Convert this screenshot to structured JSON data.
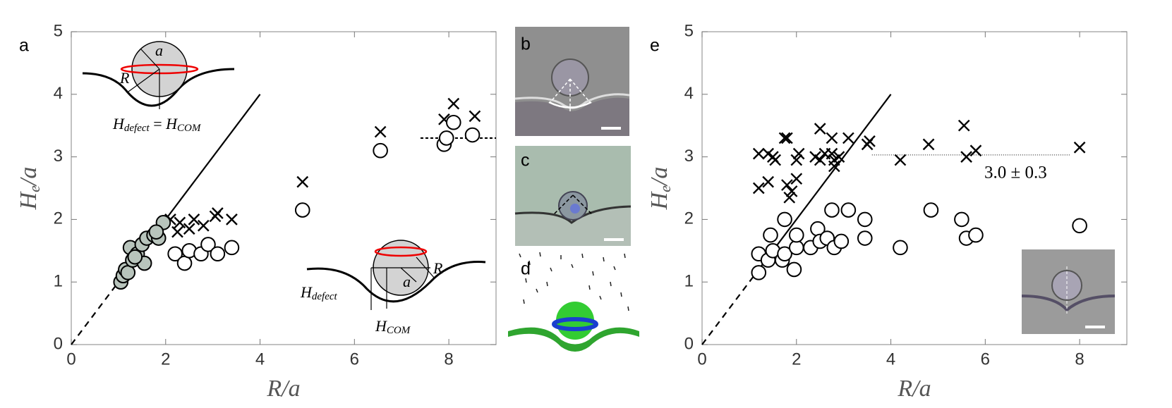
{
  "panel_labels": {
    "b": "b",
    "c": "c",
    "d": "d"
  },
  "chart_data": [
    {
      "type": "scatter",
      "panel_label": "a",
      "xlabel": "R/a",
      "ylabel": {
        "main": "H",
        "sub": "e",
        "rest": "/a"
      },
      "xlim": [
        0,
        9
      ],
      "ylim": [
        0,
        5
      ],
      "xticks": [
        0,
        2,
        4,
        6,
        8
      ],
      "yticks": [
        0,
        1,
        2,
        3,
        4,
        5
      ],
      "series": [
        {
          "marker": "x",
          "color": "#000000",
          "fill": "none",
          "x": [
            2.1,
            2.3,
            2.25,
            2.6,
            2.8,
            2.5,
            3.1,
            3.05,
            3.4,
            4.9,
            6.55,
            7.9,
            8.1,
            7.95,
            8.55
          ],
          "values": [
            2.0,
            1.95,
            1.8,
            2.0,
            1.9,
            1.85,
            2.1,
            2.05,
            2.0,
            2.6,
            3.4,
            3.6,
            3.85,
            3.3,
            3.65
          ]
        },
        {
          "marker": "o",
          "color": "#000000",
          "fill": "#ffffff",
          "x": [
            2.2,
            2.4,
            2.5,
            2.75,
            2.9,
            3.1,
            3.4,
            4.9,
            6.55,
            7.9,
            7.95,
            8.1,
            8.5
          ],
          "values": [
            1.45,
            1.3,
            1.5,
            1.45,
            1.6,
            1.45,
            1.55,
            2.15,
            3.1,
            3.2,
            3.3,
            3.55,
            3.35
          ]
        },
        {
          "marker": "o",
          "color": "#000000",
          "fill": "#b8c4bc",
          "x": [
            1.05,
            1.1,
            1.15,
            1.2,
            1.3,
            1.25,
            1.4,
            1.5,
            1.55,
            1.6,
            1.75,
            1.85,
            1.95,
            1.8,
            1.35
          ],
          "values": [
            1.0,
            1.1,
            1.2,
            1.15,
            1.35,
            1.55,
            1.45,
            1.6,
            1.3,
            1.7,
            1.75,
            1.7,
            1.95,
            1.8,
            1.4
          ]
        }
      ],
      "reference_lines": [
        {
          "x": [
            0,
            1
          ],
          "values": [
            0,
            1
          ],
          "dash": "9,7"
        },
        {
          "x": [
            1,
            4
          ],
          "values": [
            1,
            4
          ],
          "dash": "none"
        },
        {
          "x": [
            7.4,
            9
          ],
          "values": [
            3.3,
            3.3
          ],
          "dash": "4,3"
        }
      ],
      "inset_top": {
        "a": "a",
        "R": "R",
        "h1": "H",
        "h1_sub": "defect",
        "eq": " = ",
        "h2": "H",
        "h2_sub": "COM"
      },
      "inset_bottom": {
        "a": "a",
        "R": "R",
        "h1": "H",
        "h1_sub": "defect",
        "h2": "H",
        "h2_sub": "COM"
      }
    },
    {
      "type": "scatter",
      "panel_label": "e",
      "xlabel": "R/a",
      "ylabel": {
        "main": "H",
        "sub": "e",
        "rest": "/a"
      },
      "xlim": [
        0,
        9
      ],
      "ylim": [
        0,
        5
      ],
      "xticks": [
        0,
        2,
        4,
        6,
        8
      ],
      "yticks": [
        0,
        1,
        2,
        3,
        4,
        5
      ],
      "series": [
        {
          "marker": "x",
          "color": "#000000",
          "fill": "none",
          "x": [
            1.2,
            1.2,
            1.4,
            1.4,
            1.5,
            1.55,
            1.75,
            1.8,
            1.8,
            1.85,
            1.9,
            2.0,
            2.0,
            2.05,
            2.4,
            2.5,
            2.5,
            2.6,
            2.75,
            2.8,
            2.75,
            2.8,
            2.9,
            3.1,
            3.5,
            3.55,
            4.2,
            4.8,
            5.55,
            5.6,
            5.8,
            8.0
          ],
          "values": [
            3.05,
            2.5,
            3.05,
            2.6,
            3.0,
            2.95,
            3.3,
            3.3,
            2.55,
            2.35,
            2.45,
            2.65,
            2.95,
            3.05,
            3.0,
            3.45,
            2.95,
            3.05,
            3.3,
            2.95,
            3.05,
            2.85,
            3.0,
            3.3,
            3.2,
            3.25,
            2.95,
            3.2,
            3.5,
            3.0,
            3.1,
            3.15
          ]
        },
        {
          "marker": "o",
          "color": "#000000",
          "fill": "#ffffff",
          "x": [
            1.2,
            1.2,
            1.4,
            1.45,
            1.5,
            1.7,
            1.75,
            1.75,
            1.95,
            2.0,
            2.0,
            2.3,
            2.45,
            2.5,
            2.65,
            2.75,
            2.8,
            2.95,
            3.1,
            3.45,
            3.45,
            4.2,
            4.85,
            5.5,
            5.6,
            5.8,
            8.0
          ],
          "values": [
            1.15,
            1.45,
            1.35,
            1.75,
            1.5,
            1.35,
            1.45,
            2.0,
            1.2,
            1.55,
            1.75,
            1.55,
            1.85,
            1.65,
            1.7,
            2.15,
            1.55,
            1.65,
            2.15,
            2.0,
            1.7,
            1.55,
            2.15,
            2.0,
            1.7,
            1.75,
            1.9
          ]
        }
      ],
      "reference_lines": [
        {
          "x": [
            0,
            1.2
          ],
          "values": [
            0,
            1.2
          ],
          "dash": "9,7"
        },
        {
          "x": [
            1.2,
            4
          ],
          "values": [
            1.2,
            4
          ],
          "dash": "none"
        },
        {
          "x": [
            3.6,
            7.8
          ],
          "values": [
            3.03,
            3.03
          ],
          "dash": "1,2"
        }
      ],
      "annotation": "3.0 ± 0.3"
    }
  ]
}
